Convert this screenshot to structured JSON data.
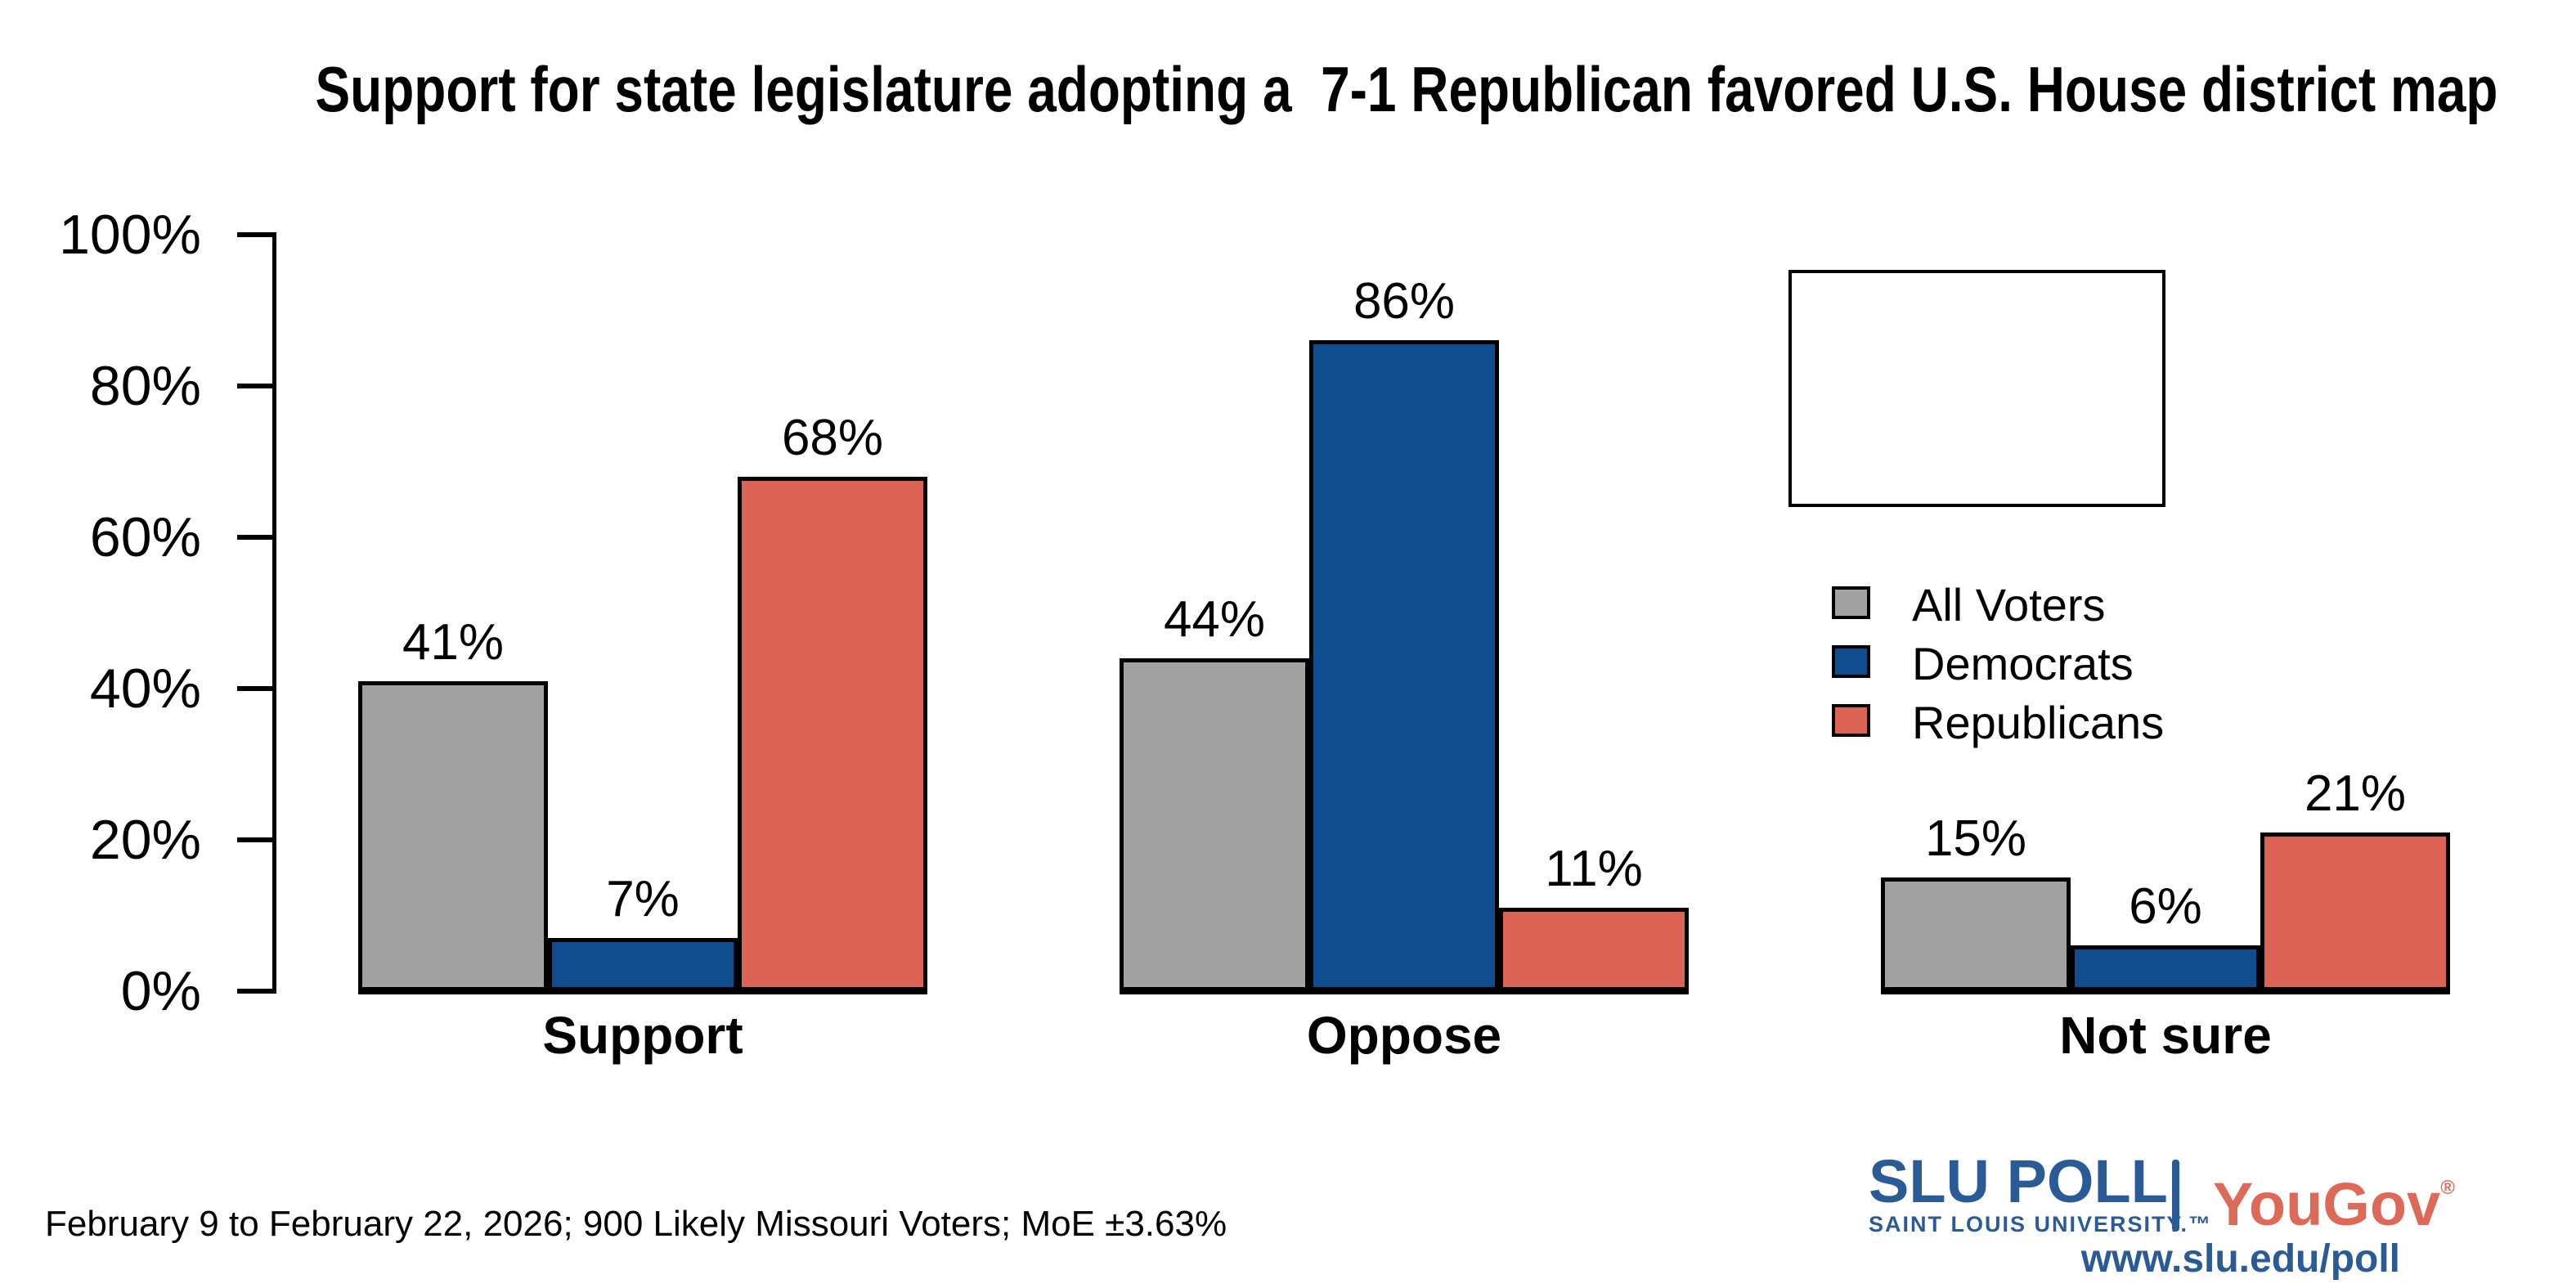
{
  "title": "Support for state legislature adopting a  7-1 Republican favored U.S. House district map",
  "chart_data": {
    "type": "bar",
    "title": "Support for state legislature adopting a  7-1 Republican favored U.S. House district map",
    "categories": [
      "Support",
      "Oppose",
      "Not sure"
    ],
    "series": [
      {
        "name": "All Voters",
        "color": "#a1a1a1",
        "values": [
          41,
          44,
          15
        ]
      },
      {
        "name": "Democrats",
        "color": "#0f4d8f",
        "values": [
          7,
          86,
          6
        ]
      },
      {
        "name": "Republicans",
        "color": "#db6455",
        "values": [
          68,
          11,
          21
        ]
      }
    ],
    "value_suffix": "%",
    "ylim": [
      0,
      100
    ],
    "yticks": [
      0,
      20,
      40,
      60,
      80,
      100
    ],
    "ytick_labels": [
      "0%",
      "20%",
      "40%",
      "60%",
      "80%",
      "100%"
    ],
    "xlabel": "",
    "ylabel": "",
    "grid": false,
    "legend_position": "top-right",
    "bar_outline_color": "#000000"
  },
  "legend": {
    "items": [
      {
        "label": "All Voters",
        "color": "#a1a1a1"
      },
      {
        "label": "Democrats",
        "color": "#0f4d8f"
      },
      {
        "label": "Republicans",
        "color": "#db6455"
      }
    ]
  },
  "footer": {
    "note": "February 9 to February 22, 2026; 900 Likely Missouri Voters; MoE ±3.63%"
  },
  "branding": {
    "slu": "SLU",
    "poll": "POLL",
    "slu_subtitle": "SAINT LOUIS UNIVERSITY.™",
    "divider": "|",
    "yougov": "YouGov",
    "registered": "®",
    "url": "www.slu.edu/poll",
    "slu_blue": "#2a5b97",
    "yougov_coral": "#dd6a58"
  }
}
